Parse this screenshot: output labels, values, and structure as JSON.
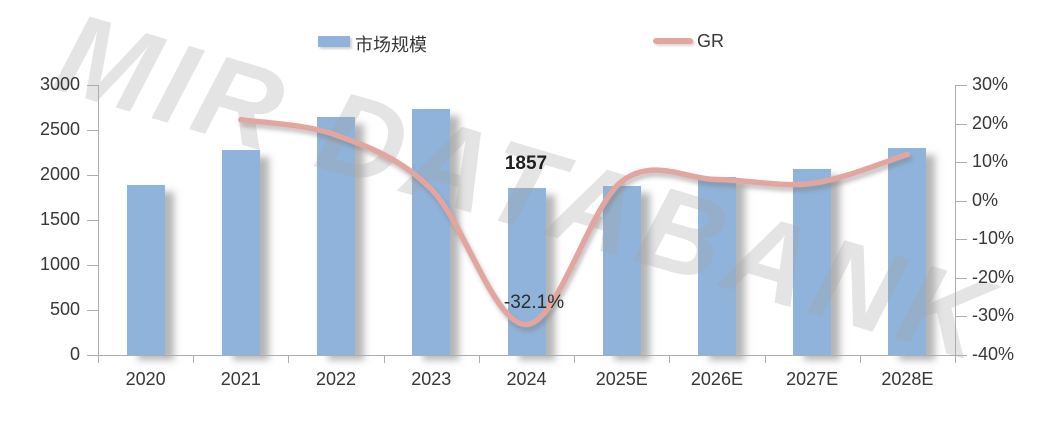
{
  "legend": {
    "market_size_label": "市场规模",
    "gr_label": "GR"
  },
  "watermark_text": "MIR DATABANK",
  "chart_data": {
    "type": "combo-bar-line",
    "categories": [
      "2020",
      "2021",
      "2022",
      "2023",
      "2024",
      "2025E",
      "2026E",
      "2027E",
      "2028E"
    ],
    "series": [
      {
        "name": "市场规模",
        "type": "bar",
        "axis": "left",
        "color": "#8FB3DA",
        "values": [
          1890,
          2280,
          2650,
          2730,
          1857,
          1880,
          1980,
          2070,
          2300
        ]
      },
      {
        "name": "GR",
        "type": "line",
        "axis": "right",
        "color": "#E3A59F",
        "values_pct": [
          null,
          21,
          17,
          3,
          -32.1,
          5,
          5.5,
          4.5,
          12
        ]
      }
    ],
    "left_axis": {
      "range": [
        0,
        3000
      ],
      "tick_labels": [
        "0",
        "500",
        "1000",
        "1500",
        "2000",
        "2500",
        "3000"
      ]
    },
    "right_axis": {
      "range_pct": [
        -40,
        30
      ],
      "tick_labels": [
        "30%",
        "20%",
        "10%",
        "0%",
        "-10%",
        "-20%",
        "-30%",
        "-40%"
      ]
    },
    "annotations": [
      {
        "text": "1857",
        "category": "2024",
        "series": "市场规模"
      },
      {
        "text": "-32.1%",
        "category": "2024",
        "series": "GR"
      }
    ],
    "title": "",
    "legend_position": "top",
    "gridlines": false,
    "axis_color": "#ADADAD",
    "text_color": "#383838"
  }
}
